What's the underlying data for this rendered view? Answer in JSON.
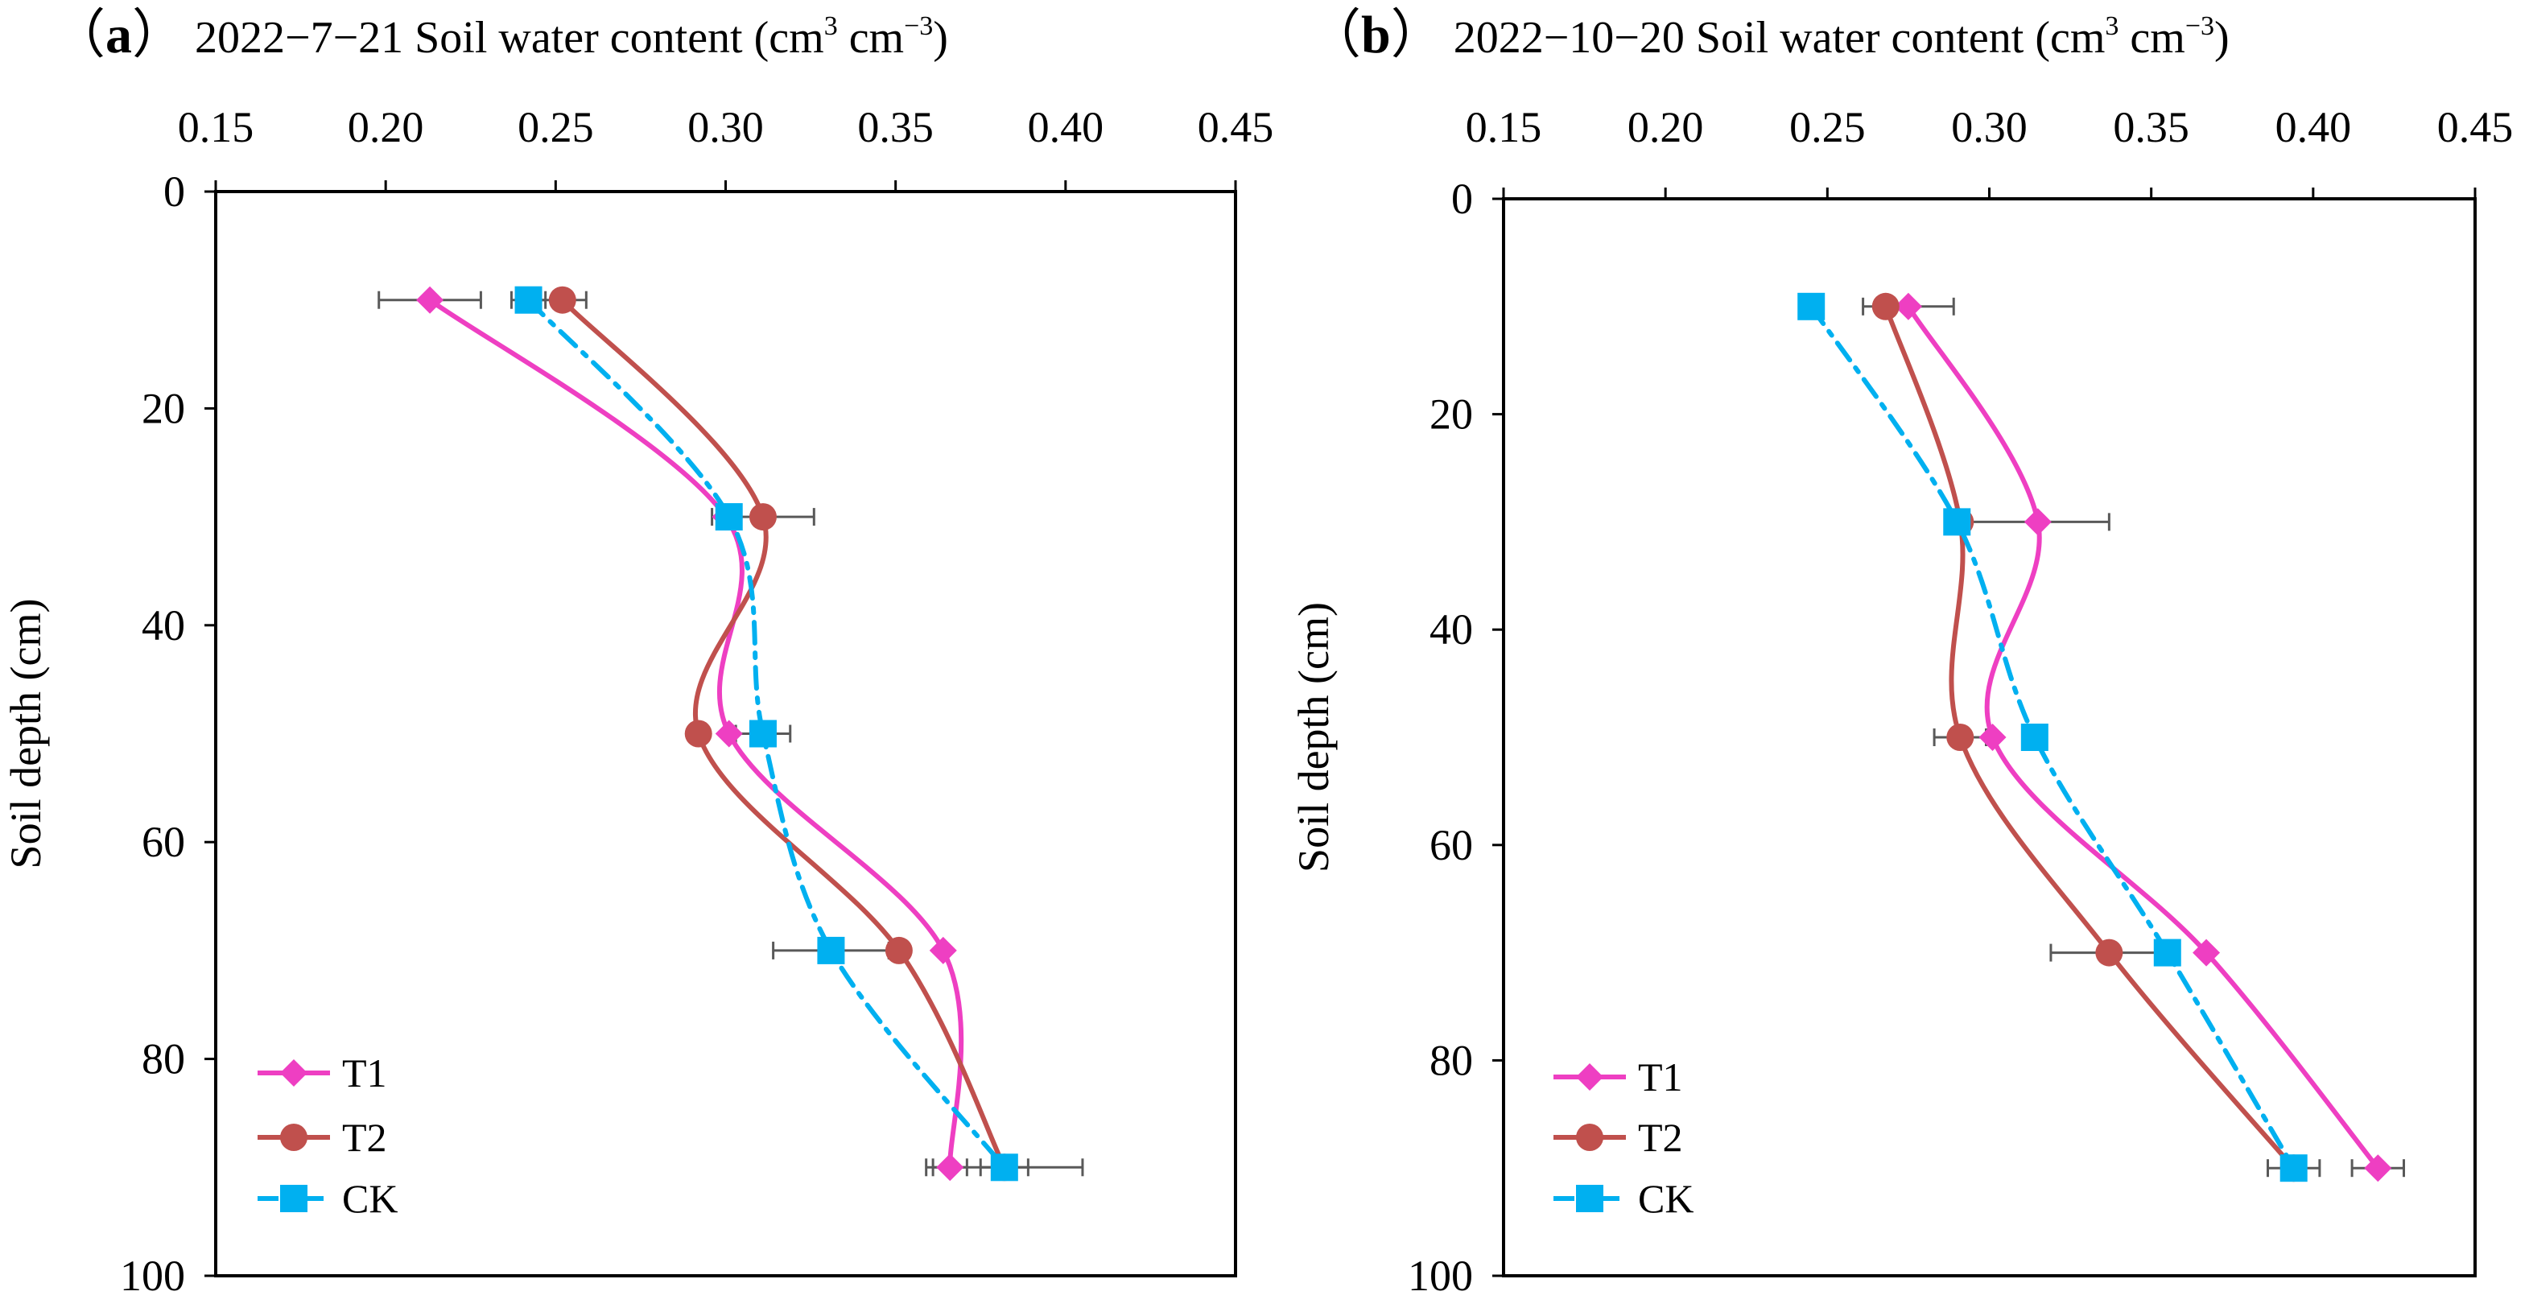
{
  "chart_data": [
    {
      "type": "line",
      "panel_label": "a",
      "title": "2022−7−21 Soil water content (cm",
      "title_unit_mid": " cm",
      "title_sup1": "3",
      "title_sup2": "−3",
      "title_close": ")",
      "xlabel": "Soil water content (cm³ cm⁻³)",
      "ylabel": "Soil depth (cm)",
      "xlim": [
        0.15,
        0.45
      ],
      "ylim": [
        0,
        100
      ],
      "x_ticks": [
        "0.15",
        "0.20",
        "0.25",
        "0.30",
        "0.35",
        "0.40",
        "0.45"
      ],
      "y_ticks": [
        "0",
        "20",
        "40",
        "60",
        "80",
        "100"
      ],
      "depths": [
        10,
        30,
        50,
        70,
        90
      ],
      "series": [
        {
          "name": "T1",
          "color": "#ee3fc2",
          "marker": "diamond",
          "line": "solid",
          "values": [
            0.213,
            0.3,
            0.301,
            0.364,
            0.366
          ],
          "errors": [
            0.015,
            0.0,
            0.0,
            0.0,
            0.005
          ]
        },
        {
          "name": "T2",
          "color": "#c0504d",
          "marker": "circle",
          "line": "solid",
          "values": [
            0.252,
            0.311,
            0.292,
            0.351,
            0.382
          ],
          "errors": [
            0.007,
            0.015,
            0.0,
            0.0,
            0.007
          ]
        },
        {
          "name": "CK",
          "color": "#00b0f0",
          "marker": "square",
          "line": "dashdot",
          "values": [
            0.242,
            0.301,
            0.311,
            0.331,
            0.382
          ],
          "errors": [
            0.005,
            0.0,
            0.008,
            0.017,
            0.023
          ]
        }
      ],
      "legend": [
        "T1",
        "T2",
        "CK"
      ],
      "legend_position": "bottom-left"
    },
    {
      "type": "line",
      "panel_label": "b",
      "title": "2022−10−20 Soil water content (cm",
      "title_unit_mid": " cm",
      "title_sup1": "3",
      "title_sup2": "−3",
      "title_close": ")",
      "xlabel": "Soil water content (cm³ cm⁻³)",
      "ylabel": "Soil depth (cm)",
      "xlim": [
        0.15,
        0.45
      ],
      "ylim": [
        0,
        100
      ],
      "x_ticks": [
        "0.15",
        "0.20",
        "0.25",
        "0.30",
        "0.35",
        "0.40",
        "0.45"
      ],
      "y_ticks": [
        "0",
        "20",
        "40",
        "60",
        "80",
        "100"
      ],
      "depths": [
        10,
        30,
        50,
        70,
        90
      ],
      "series": [
        {
          "name": "T1",
          "color": "#ee3fc2",
          "marker": "diamond",
          "line": "solid",
          "values": [
            0.275,
            0.315,
            0.301,
            0.367,
            0.42
          ],
          "errors": [
            0.014,
            0.022,
            0.0,
            0.0,
            0.008
          ]
        },
        {
          "name": "T2",
          "color": "#c0504d",
          "marker": "circle",
          "line": "solid",
          "values": [
            0.268,
            0.291,
            0.291,
            0.337,
            0.394
          ],
          "errors": [
            0.0,
            0.0,
            0.008,
            0.018,
            0.0
          ]
        },
        {
          "name": "CK",
          "color": "#00b0f0",
          "marker": "square",
          "line": "dashdot",
          "values": [
            0.245,
            0.29,
            0.314,
            0.355,
            0.394
          ],
          "errors": [
            0.0,
            0.0,
            0.0,
            0.0,
            0.008
          ]
        }
      ],
      "legend": [
        "T1",
        "T2",
        "CK"
      ],
      "legend_position": "bottom-left"
    }
  ]
}
